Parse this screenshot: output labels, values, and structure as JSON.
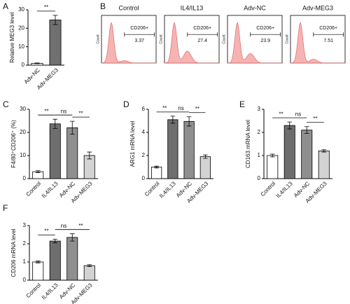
{
  "chart_data": [
    {
      "type": "bar",
      "panel_label": "A",
      "y_label": "Relative MEG3 level",
      "categories": [
        "Adv-NC",
        "Adv-MEG3"
      ],
      "values": [
        1,
        24.5
      ],
      "errors": [
        0.2,
        2.5
      ],
      "colors": [
        "#ffffff",
        "#707070"
      ],
      "ylim": [
        0,
        30
      ],
      "yticks": [
        0,
        10,
        20,
        30
      ],
      "annotations": [
        "**"
      ]
    },
    {
      "type": "flow",
      "panel_label": "B",
      "y_label": "Count",
      "gate_label": "CD206+",
      "panels": [
        {
          "title": "Control",
          "value": 3.37
        },
        {
          "title": "IL4/IL13",
          "value": 27.4
        },
        {
          "title": "Adv-NC",
          "value": 23.9
        },
        {
          "title": "Adv-MEG3",
          "value": 7.51
        }
      ]
    },
    {
      "type": "bar",
      "panel_label": "C",
      "y_label": "F4/80⁺CD206⁺ (%)",
      "categories": [
        "Control",
        "IL4/IL13",
        "Adv-NC",
        "Adv-MEG3"
      ],
      "values": [
        3,
        23.7,
        22,
        10
      ],
      "errors": [
        0.4,
        2,
        2.8,
        1.5
      ],
      "colors": [
        "#ffffff",
        "#6e6e6e",
        "#8f8f8f",
        "#d3d3d3"
      ],
      "ylim": [
        0,
        30
      ],
      "yticks": [
        0,
        10,
        20,
        30
      ],
      "annotations": [
        "**",
        "ns",
        "**"
      ]
    },
    {
      "type": "bar",
      "panel_label": "D",
      "y_label": "ARG1 mRNA level",
      "categories": [
        "Control",
        "IL4/IL13",
        "Adv-NC",
        "Adv-MEG3"
      ],
      "values": [
        1,
        5.1,
        4.95,
        1.9
      ],
      "errors": [
        0.08,
        0.3,
        0.4,
        0.15
      ],
      "colors": [
        "#ffffff",
        "#6e6e6e",
        "#8f8f8f",
        "#d3d3d3"
      ],
      "ylim": [
        0,
        6
      ],
      "yticks": [
        0,
        2,
        4,
        6
      ],
      "annotations": [
        "**",
        "ns",
        "**"
      ]
    },
    {
      "type": "bar",
      "panel_label": "E",
      "y_label": "CD163 mRNA level",
      "categories": [
        "Control",
        "IL4/IL13",
        "Adv-NC",
        "Adv-MEG3"
      ],
      "values": [
        1,
        2.3,
        2.1,
        1.2
      ],
      "errors": [
        0.06,
        0.15,
        0.15,
        0.05
      ],
      "colors": [
        "#ffffff",
        "#6e6e6e",
        "#8f8f8f",
        "#d3d3d3"
      ],
      "ylim": [
        0,
        3
      ],
      "yticks": [
        0,
        1,
        2,
        3
      ],
      "annotations": [
        "**",
        "ns",
        "**"
      ]
    },
    {
      "type": "bar",
      "panel_label": "F",
      "y_label": "CD206 mRNA level",
      "categories": [
        "Control",
        "IL4/IL13",
        "Adv-NC",
        "Adv-MEG3"
      ],
      "values": [
        1,
        2.15,
        2.35,
        0.8
      ],
      "errors": [
        0.05,
        0.1,
        0.2,
        0.05
      ],
      "colors": [
        "#ffffff",
        "#6e6e6e",
        "#8f8f8f",
        "#d3d3d3"
      ],
      "ylim": [
        0,
        3
      ],
      "yticks": [
        0,
        1,
        2,
        3
      ],
      "annotations": [
        "**",
        "ns",
        "**"
      ]
    }
  ]
}
